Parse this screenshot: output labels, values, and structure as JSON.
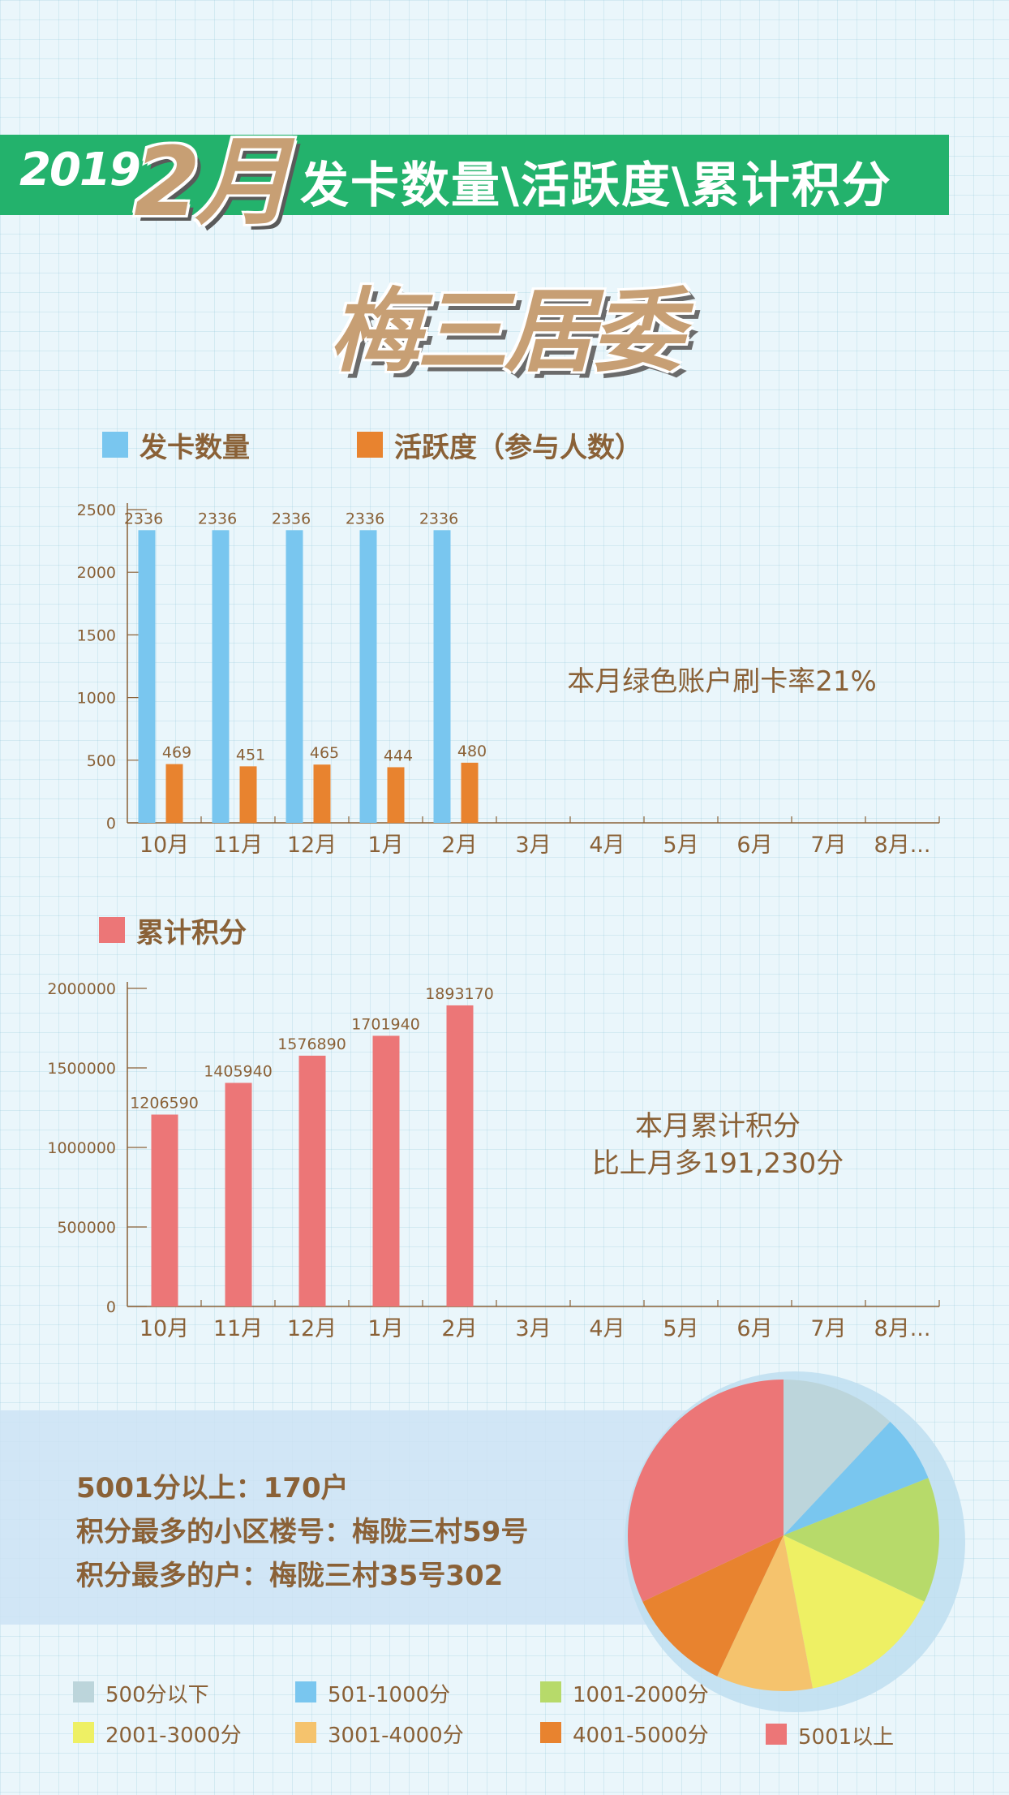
{
  "header": {
    "year": "2019",
    "month": "2月",
    "title": "发卡数量\\活跃度\\累计积分",
    "org": "梅三居委"
  },
  "chart1": {
    "legend": [
      {
        "label": "发卡数量",
        "color": "#79c6ef"
      },
      {
        "label": "活跃度（参与人数）",
        "color": "#e8832f"
      }
    ],
    "annotation": "本月绿色账户刷卡率21%"
  },
  "chart2": {
    "legend": [
      {
        "label": "累计积分",
        "color": "#ec7677"
      }
    ],
    "annotation_line1": "本月累计积分",
    "annotation_line2": "比上月多191,230分"
  },
  "summary": {
    "line1": "5001分以上：170户",
    "line2": "积分最多的小区楼号：梅陇三村59号",
    "line3": "积分最多的户：梅陇三村35号302"
  },
  "chart_data": [
    {
      "type": "bar",
      "categories": [
        "10月",
        "11月",
        "12月",
        "1月",
        "2月",
        "3月",
        "4月",
        "5月",
        "6月",
        "7月",
        "8月..."
      ],
      "series": [
        {
          "name": "发卡数量",
          "values": [
            2336,
            2336,
            2336,
            2336,
            2336,
            null,
            null,
            null,
            null,
            null,
            null
          ],
          "color": "#79c6ef"
        },
        {
          "name": "活跃度（参与人数）",
          "values": [
            469,
            451,
            465,
            444,
            480,
            null,
            null,
            null,
            null,
            null,
            null
          ],
          "color": "#e8832f"
        }
      ],
      "yticks": [
        "0",
        "500",
        "1000",
        "1500",
        "2000",
        "2500"
      ],
      "ylim": [
        0,
        2500
      ]
    },
    {
      "type": "bar",
      "categories": [
        "10月",
        "11月",
        "12月",
        "1月",
        "2月",
        "3月",
        "4月",
        "5月",
        "6月",
        "7月",
        "8月..."
      ],
      "series": [
        {
          "name": "累计积分",
          "values": [
            1206590,
            1405940,
            1576890,
            1701940,
            1893170,
            null,
            null,
            null,
            null,
            null,
            null
          ],
          "color": "#ec7677"
        }
      ],
      "yticks": [
        "0",
        "500000",
        "1000000",
        "1500000",
        "2000000"
      ],
      "ylim": [
        0,
        2000000
      ]
    },
    {
      "type": "pie",
      "slices": [
        {
          "label": "500分以下",
          "value": 12,
          "color": "#bcd5db"
        },
        {
          "label": "501-1000分",
          "value": 7,
          "color": "#79c6ef"
        },
        {
          "label": "1001-2000分",
          "value": 13,
          "color": "#b7da6a"
        },
        {
          "label": "2001-3000分",
          "value": 15,
          "color": "#eef064"
        },
        {
          "label": "3001-4000分",
          "value": 10,
          "color": "#f5c36d"
        },
        {
          "label": "4001-5000分",
          "value": 11,
          "color": "#e8832f"
        },
        {
          "label": "5001以上",
          "value": 32,
          "color": "#ec7677"
        }
      ]
    }
  ]
}
